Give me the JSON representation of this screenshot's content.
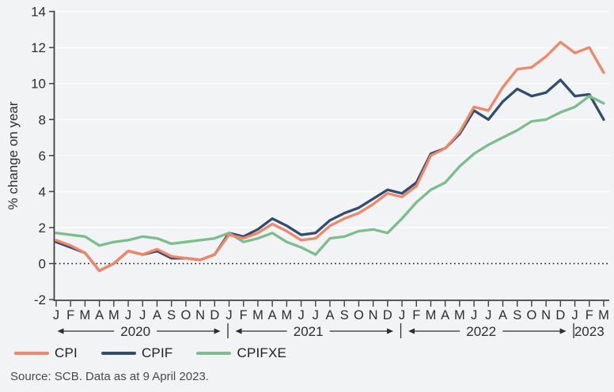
{
  "footer": {
    "source": "Source: SCB. Data as at 9 April 2023."
  },
  "chart_data": {
    "type": "line",
    "title": "",
    "xlabel": "",
    "ylabel": "% change on year",
    "ylim": [
      -2,
      14
    ],
    "yticks": [
      14,
      12,
      10,
      8,
      6,
      4,
      2,
      0,
      -2
    ],
    "grid": "horizontal-white",
    "zero_line": "dotted-black",
    "legend_position": "bottom-left",
    "x_unit": "month",
    "years": [
      {
        "label": "2020",
        "letters": "JFMAMJJASOND",
        "arrows": true
      },
      {
        "label": "2021",
        "letters": "JFMAMJJASOND",
        "arrows": true
      },
      {
        "label": "2022",
        "letters": "JFMAMJJASOND",
        "arrows": true
      },
      {
        "label": "2023",
        "letters": "JFM",
        "arrows": false
      }
    ],
    "series": [
      {
        "name": "CPI",
        "color": "#ef8768",
        "values": [
          1.3,
          1.0,
          0.6,
          -0.4,
          0.0,
          0.7,
          0.5,
          0.8,
          0.4,
          0.3,
          0.2,
          0.5,
          1.6,
          1.4,
          1.7,
          2.2,
          1.8,
          1.3,
          1.4,
          2.1,
          2.5,
          2.8,
          3.3,
          3.9,
          3.7,
          4.3,
          6.0,
          6.4,
          7.3,
          8.7,
          8.5,
          9.8,
          10.8,
          10.9,
          11.5,
          12.3,
          11.7,
          12.0,
          10.6
        ]
      },
      {
        "name": "CPIF",
        "color": "#304d6e",
        "values": [
          1.2,
          0.9,
          0.6,
          -0.4,
          0.0,
          0.7,
          0.5,
          0.7,
          0.3,
          0.3,
          0.2,
          0.5,
          1.7,
          1.5,
          1.9,
          2.5,
          2.1,
          1.6,
          1.7,
          2.4,
          2.8,
          3.1,
          3.6,
          4.1,
          3.9,
          4.5,
          6.1,
          6.4,
          7.2,
          8.5,
          8.0,
          9.0,
          9.7,
          9.3,
          9.5,
          10.2,
          9.3,
          9.4,
          8.0
        ]
      },
      {
        "name": "CPIFXE",
        "color": "#7cbd8c",
        "values": [
          1.7,
          1.6,
          1.5,
          1.0,
          1.2,
          1.3,
          1.5,
          1.4,
          1.1,
          1.2,
          1.3,
          1.4,
          1.7,
          1.2,
          1.4,
          1.7,
          1.2,
          0.9,
          0.5,
          1.4,
          1.5,
          1.8,
          1.9,
          1.7,
          2.5,
          3.4,
          4.1,
          4.5,
          5.4,
          6.1,
          6.6,
          7.0,
          7.4,
          7.9,
          8.0,
          8.4,
          8.7,
          9.3,
          8.9
        ]
      }
    ],
    "draw_order": [
      1,
      2,
      0
    ]
  }
}
